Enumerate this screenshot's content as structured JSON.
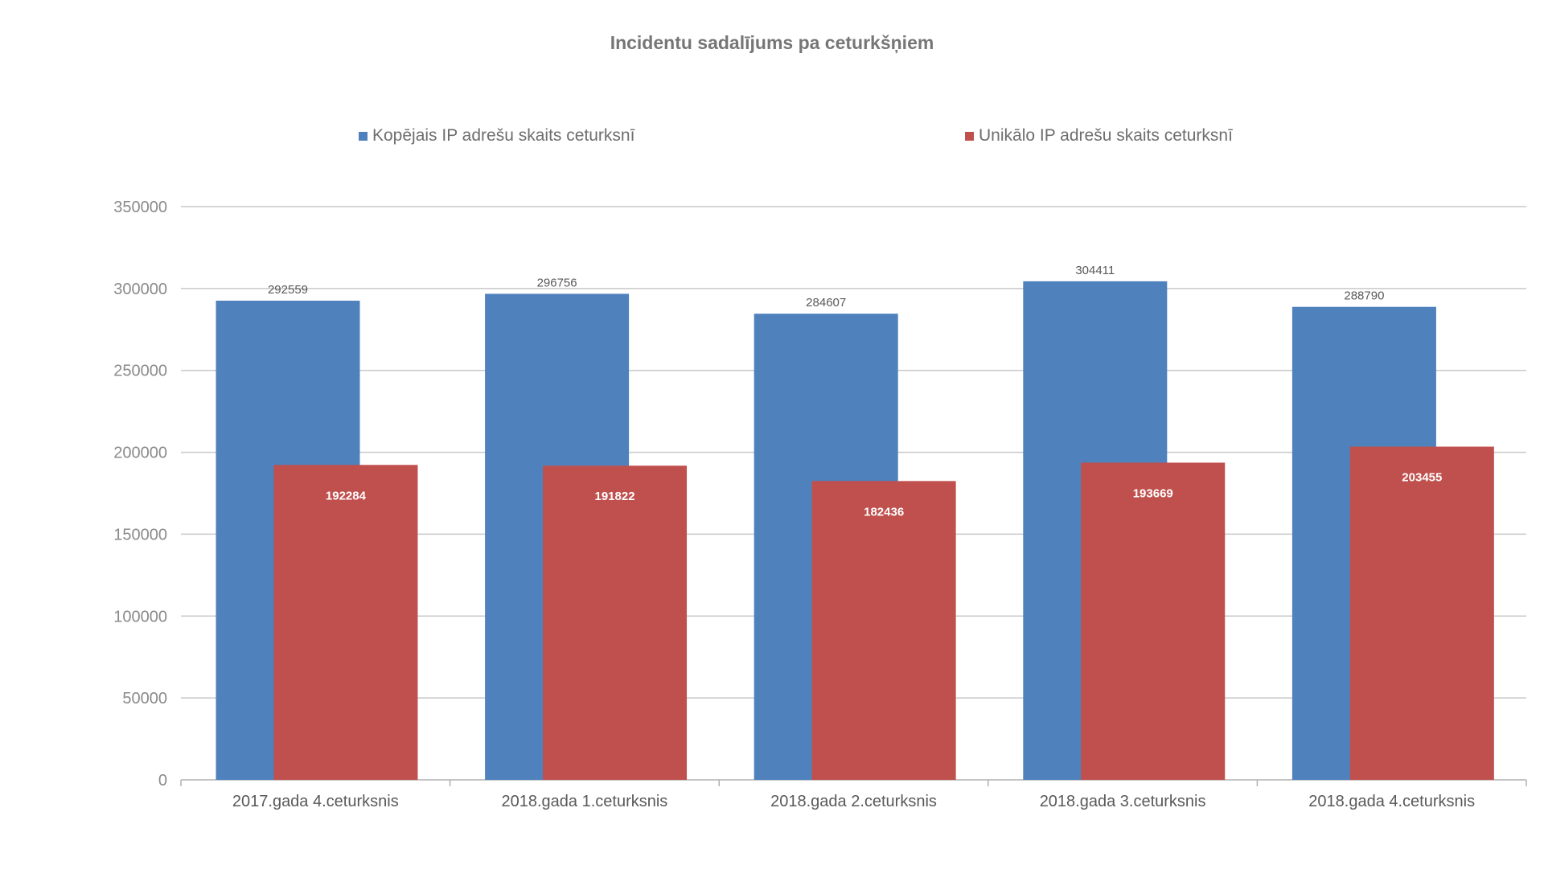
{
  "chart_data": {
    "type": "bar",
    "title": "Incidentu sadalījums pa ceturkšņiem",
    "categories": [
      "2017.gada 4.ceturksnis",
      "2018.gada 1.ceturksnis",
      "2018.gada 2.ceturksnis",
      "2018.gada 3.ceturksnis",
      "2018.gada 4.ceturksnis"
    ],
    "series": [
      {
        "name": "Kopējais IP adrešu skaits ceturksnī",
        "color": "#4f81bd",
        "values": [
          292559,
          296756,
          284607,
          304411,
          288790
        ]
      },
      {
        "name": "Unikālo IP adrešu skaits ceturksnī",
        "color": "#c0504d",
        "values": [
          192284,
          191822,
          182436,
          193669,
          203455
        ]
      }
    ],
    "ylim": [
      0,
      350000
    ],
    "yticks": [
      "0",
      "50000",
      "100000",
      "150000",
      "200000",
      "250000",
      "300000",
      "350000"
    ],
    "xlabel": "",
    "ylabel": "",
    "grid": true,
    "legend_position": "top"
  }
}
